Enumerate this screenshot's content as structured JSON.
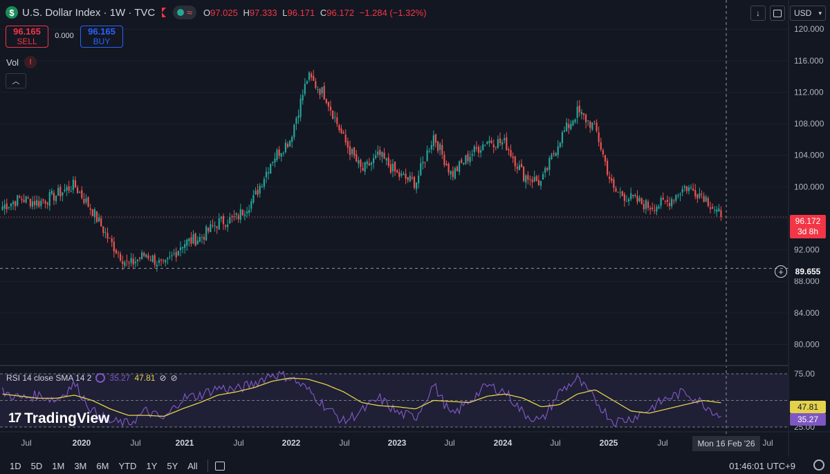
{
  "header": {
    "symbol_icon": "$",
    "title": "U.S. Dollar Index · 1W · TVC",
    "ohlc": [
      {
        "key": "O",
        "value": "97.025"
      },
      {
        "key": "H",
        "value": "97.333"
      },
      {
        "key": "L",
        "value": "96.171"
      },
      {
        "key": "C",
        "value": "96.172"
      }
    ],
    "change": "−1.284 (−1.32%)"
  },
  "trade": {
    "sell_price": "96.165",
    "sell_label": "SELL",
    "spread": "0.000",
    "buy_price": "96.165",
    "buy_label": "BUY"
  },
  "volume_label": "Vol",
  "warning_icon": "!",
  "collapse_icon": "chevron-up-icon",
  "toolbar": {
    "download_icon": "↓",
    "fullscreen_icon": "fullscreen-icon",
    "currency": "USD"
  },
  "price_tags": {
    "last_price": "96.172",
    "countdown": "3d 8h",
    "crosshair_price": "89.655",
    "rsi_sma": "47.81",
    "rsi_value": "35.27"
  },
  "rsi_legend": {
    "label": "RSI 14 close SMA 14 2",
    "rsi_value": "35.27",
    "sma_value": "47.81"
  },
  "logo_text": "TradingView",
  "x_labels": [
    "Jul",
    "2020",
    "Jul",
    "2021",
    "Jul",
    "2022",
    "Jul",
    "2023",
    "Jul",
    "2024",
    "Jul",
    "2025",
    "Jul",
    "Jul"
  ],
  "x_tooltip": "Mon 16 Feb '26",
  "bottom": {
    "ranges": [
      "1D",
      "5D",
      "1M",
      "3M",
      "6M",
      "YTD",
      "1Y",
      "5Y",
      "All"
    ],
    "time": "01:46:01 UTC+9"
  },
  "colors": {
    "background": "#131722",
    "up": "#26a69a",
    "down": "#ef5350",
    "rsi": "#7e57c2",
    "rsi_sma": "#e5d24c"
  },
  "chart_data": [
    {
      "type": "candlestick",
      "title": "U.S. Dollar Index",
      "interval": "1W",
      "ylim": [
        77.5,
        123
      ],
      "yticks": [
        80,
        84,
        88,
        92,
        96,
        100,
        104,
        108,
        112,
        116,
        120
      ],
      "x": [
        "2019-07",
        "2019-10",
        "2020-01",
        "2020-03",
        "2020-05",
        "2020-07",
        "2020-09",
        "2021-01",
        "2021-03",
        "2021-05",
        "2021-07",
        "2021-09",
        "2021-11",
        "2022-01",
        "2022-03",
        "2022-05",
        "2022-07",
        "2022-09",
        "2022-10",
        "2022-11",
        "2023-01",
        "2023-03",
        "2023-05",
        "2023-07",
        "2023-10",
        "2023-12",
        "2024-02",
        "2024-04",
        "2024-06",
        "2024-08",
        "2024-09",
        "2024-11",
        "2025-01",
        "2025-02",
        "2025-04",
        "2025-06",
        "2025-07",
        "2025-09",
        "2025-11",
        "2026-01",
        "2026-02"
      ],
      "close": [
        97.5,
        98.5,
        98.0,
        99.0,
        100.2,
        97.0,
        93.0,
        90.0,
        91.5,
        89.8,
        92.8,
        93.5,
        95.5,
        96.0,
        98.5,
        103.5,
        106.0,
        114.0,
        111.5,
        106.0,
        102.0,
        104.0,
        101.5,
        100.5,
        106.5,
        101.5,
        104.0,
        105.9,
        105.5,
        101.5,
        100.5,
        106.0,
        109.5,
        107.5,
        99.5,
        98.5,
        97.5,
        98.0,
        100.0,
        99.0,
        96.172
      ],
      "price_line": 96.172,
      "crosshair": 89.655
    },
    {
      "type": "line",
      "title": "RSI 14 close SMA 14 2",
      "ylim": [
        25,
        75
      ],
      "bands": [
        25,
        50,
        75
      ],
      "yticks": [
        25,
        75
      ],
      "series": [
        {
          "name": "RSI",
          "values": [
            58,
            52,
            55,
            50,
            66,
            40,
            30,
            28,
            40,
            32,
            52,
            55,
            62,
            60,
            66,
            75,
            72,
            60,
            44,
            30,
            40,
            52,
            38,
            34,
            65,
            35,
            50,
            64,
            58,
            38,
            30,
            58,
            70,
            50,
            30,
            33,
            42,
            52,
            58,
            47,
            35.27
          ]
        },
        {
          "name": "SMA",
          "values": [
            56,
            54,
            52,
            52,
            55,
            50,
            42,
            36,
            36,
            35,
            42,
            48,
            55,
            58,
            62,
            68,
            71,
            70,
            65,
            58,
            48,
            45,
            44,
            42,
            50,
            49,
            48,
            54,
            56,
            52,
            44,
            46,
            56,
            60,
            50,
            40,
            38,
            42,
            46,
            50,
            47.81
          ]
        }
      ]
    }
  ]
}
